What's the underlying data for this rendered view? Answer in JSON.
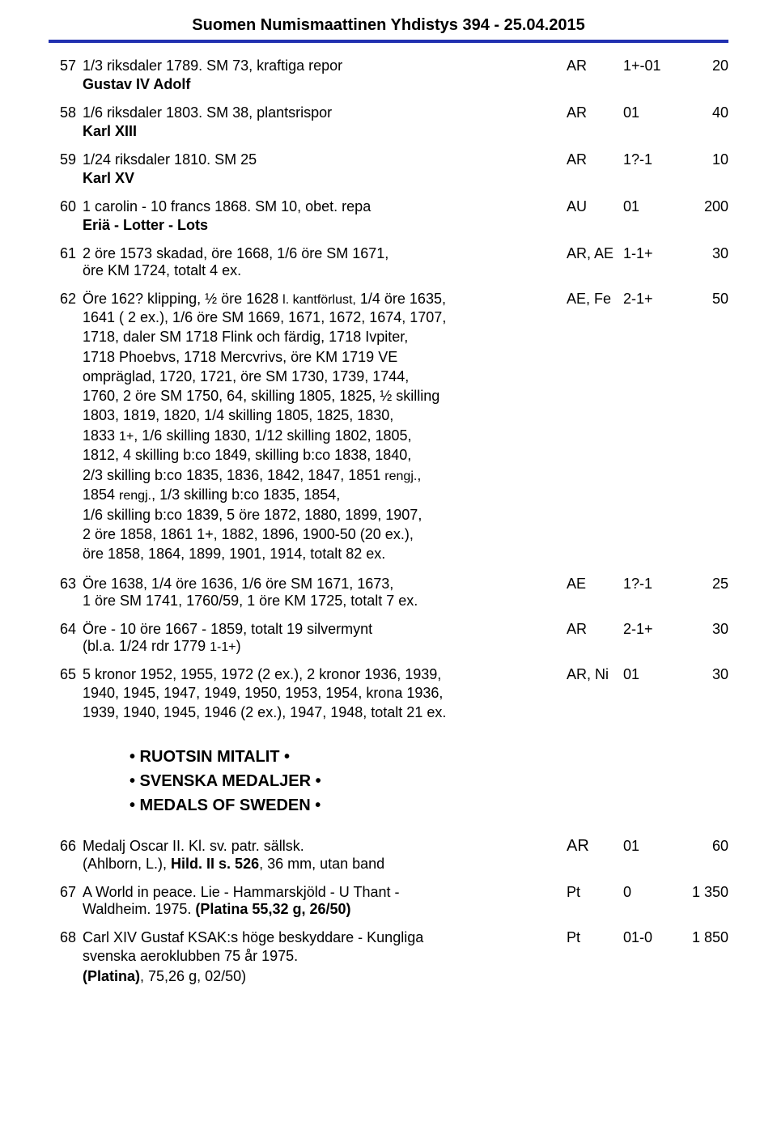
{
  "header": {
    "title": "Suomen Numismaattinen Yhdistys 394 - 25.04.2015"
  },
  "lots": {
    "l57": {
      "num": "57",
      "desc": "1/3 riksdaler 1789. SM 73, kraftiga repor",
      "metal": "AR",
      "grade": "1+-01",
      "price": "20"
    },
    "h_gustav": "Gustav IV Adolf",
    "l58": {
      "num": "58",
      "desc": "1/6 riksdaler 1803. SM 38, plantsrispor",
      "metal": "AR",
      "grade": "01",
      "price": "40"
    },
    "h_karl13": "Karl XIII",
    "l59": {
      "num": "59",
      "desc": "1/24 riksdaler 1810. SM 25",
      "metal": "AR",
      "grade": "1?-1",
      "price": "10"
    },
    "h_karl15": "Karl XV",
    "l60": {
      "num": "60",
      "desc": "1 carolin - 10 francs 1868. SM 10, obet. repa",
      "metal": "AU",
      "grade": "01",
      "price": "200"
    },
    "h_eria": "Eriä - Lotter - Lots",
    "l61": {
      "num": "61",
      "desc": "2 öre 1573 skadad, öre 1668, 1/6 öre SM 1671,",
      "cont": "öre KM 1724, totalt 4 ex.",
      "metal": "AR, AE",
      "grade": "1-1+",
      "price": "30"
    },
    "l62": {
      "num": "62",
      "line1_a": "Öre 162? klipping, ½ öre 1628 ",
      "line1_b": "l. kantförlust,",
      "line1_c": " 1/4 öre 1635,",
      "metal": "AE, Fe",
      "grade": "2-1+",
      "price": "50",
      "lines": [
        "1641 ( 2 ex.), 1/6 öre SM 1669, 1671, 1672, 1674, 1707,",
        "1718, daler SM 1718 Flink och färdig, 1718 Ivpiter,",
        "1718 Phoebvs, 1718 Mercvrivs, öre KM 1719 VE",
        "ompräglad, 1720, 1721, öre SM 1730, 1739, 1744,",
        "1760, 2 öre SM 1750, 64, skilling 1805, 1825, ½ skilling",
        "1803, 1819, 1820, 1/4 skilling 1805, 1825, 1830,"
      ],
      "line_1833_a": "1833 ",
      "line_1833_b": "1+",
      "line_1833_c": ", 1/6 skilling 1830, 1/12 skilling 1802, 1805,",
      "lines2": [
        "1812, 4 skilling b:co 1849, skilling b:co 1838, 1840,"
      ],
      "line_rengj_a": "2/3 skilling b:co 1835, 1836, 1842, 1847, 1851 ",
      "line_rengj_b": "rengj.",
      "line_rengj_c": ",",
      "line_1854_a": "1854 ",
      "line_1854_b": "rengj.",
      "line_1854_c": ", 1/3 skilling b:co 1835, 1854,",
      "lines3": [
        "1/6 skilling b:co 1839, 5 öre 1872, 1880, 1899, 1907,",
        "2 öre 1858, 1861 1+, 1882, 1896, 1900-50 (20 ex.),",
        "öre 1858, 1864, 1899, 1901, 1914, totalt 82 ex."
      ]
    },
    "l63": {
      "num": "63",
      "desc": "Öre 1638, 1/4 öre 1636, 1/6 öre SM 1671, 1673,",
      "cont": "1 öre SM 1741, 1760/59, 1 öre KM 1725, totalt 7 ex.",
      "metal": "AE",
      "grade": "1?-1",
      "price": "25"
    },
    "l64": {
      "num": "64",
      "desc": "Öre - 10 öre 1667 - 1859, totalt 19 silvermynt",
      "cont_a": "(bl.a. 1/24 rdr 1779 ",
      "cont_b": "1-1+",
      "cont_c": ")",
      "metal": "AR",
      "grade": "2-1+",
      "price": "30"
    },
    "l65": {
      "num": "65",
      "desc": "5 kronor 1952, 1955, 1972 (2 ex.), 2 kronor 1936, 1939,",
      "metal": "AR, Ni",
      "grade": "01",
      "price": "30",
      "lines": [
        "1940, 1945, 1947, 1949, 1950, 1953, 1954, krona 1936,",
        "1939, 1940, 1945, 1946 (2 ex.), 1947, 1948, totalt 21 ex."
      ]
    }
  },
  "section": {
    "l1": "•  RUOTSIN MITALIT  •",
    "l2": "•  SVENSKA MEDALJER  •",
    "l3": "•  MEDALS OF SWEDEN  •"
  },
  "lots2": {
    "l66": {
      "num": "66",
      "desc": "Medalj Oscar II. Kl. sv. patr. sällsk.",
      "metal": "AR",
      "grade": "01",
      "price": "60",
      "cont_a": "(Ahlborn, L.), ",
      "cont_b": "Hild. II s. 526",
      "cont_c": ", 36 mm, utan band"
    },
    "l67": {
      "num": "67",
      "desc": "A World in peace. Lie - Hammarskjöld - U Thant -",
      "metal": "Pt",
      "grade": "0",
      "price": "1 350",
      "cont_a": "Waldheim. 1975. ",
      "cont_b": "(Platina 55,32 g, 26/50)"
    },
    "l68": {
      "num": "68",
      "desc": "Carl XIV Gustaf KSAK:s höge beskyddare - Kungliga",
      "metal": "Pt",
      "grade": "01-0",
      "price": "1 850",
      "lines": [
        "svenska aeroklubben 75 år 1975."
      ],
      "cont_b": "(Platina)",
      "cont_c": ", 75,26 g, 02/50)"
    }
  }
}
